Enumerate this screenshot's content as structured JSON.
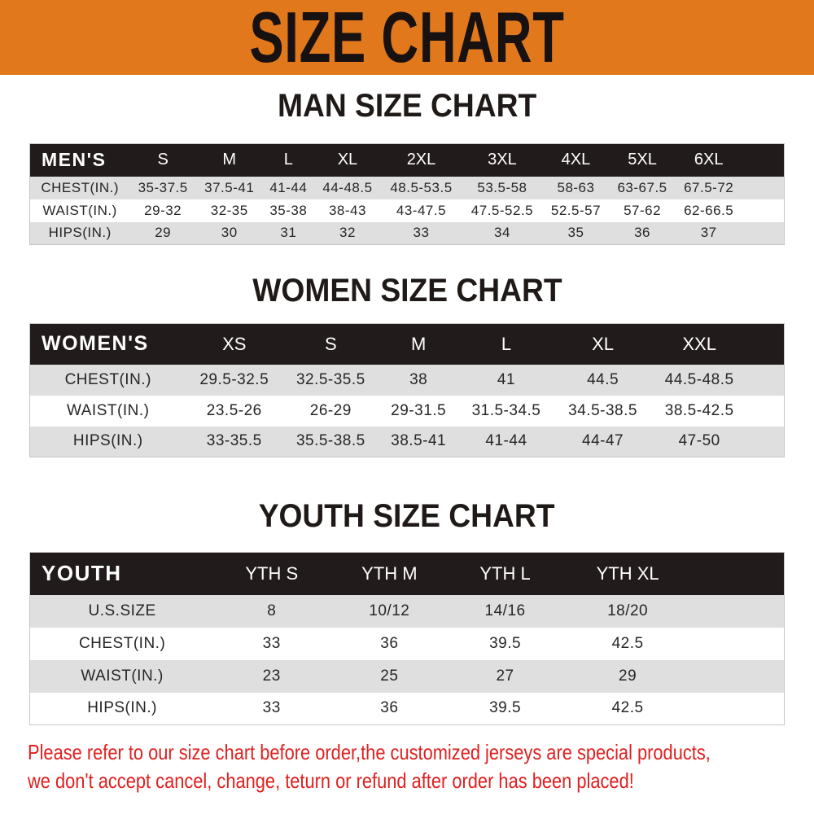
{
  "banner": {
    "title": "SIZE CHART",
    "bg_color": "#E2781C"
  },
  "colors": {
    "table_header_bar": "#221B1B",
    "row_shaded": "#DFDFDF",
    "row_plain": "#FFFFFF",
    "footer_text": "#E02020",
    "heading_text": "#1F1A17"
  },
  "sections": [
    {
      "heading": "MAN SIZE CHART",
      "table": {
        "label": "MEN'S",
        "columns": [
          "S",
          "M",
          "L",
          "XL",
          "2XL",
          "3XL",
          "4XL",
          "5XL",
          "6XL"
        ],
        "rows": [
          {
            "label": "CHEST(IN.)",
            "values": [
              "35-37.5",
              "37.5-41",
              "41-44",
              "44-48.5",
              "48.5-53.5",
              "53.5-58",
              "58-63",
              "63-67.5",
              "67.5-72"
            ]
          },
          {
            "label": "WAIST(IN.)",
            "values": [
              "29-32",
              "32-35",
              "35-38",
              "38-43",
              "43-47.5",
              "47.5-52.5",
              "52.5-57",
              "57-62",
              "62-66.5"
            ]
          },
          {
            "label": "HIPS(IN.)",
            "values": [
              "29",
              "30",
              "31",
              "32",
              "33",
              "34",
              "35",
              "36",
              "37"
            ]
          }
        ]
      }
    },
    {
      "heading": "WOMEN SIZE CHART",
      "table": {
        "label": "WOMEN'S",
        "columns": [
          "XS",
          "S",
          "M",
          "L",
          "XL",
          "XXL"
        ],
        "rows": [
          {
            "label": "CHEST(IN.)",
            "values": [
              "29.5-32.5",
              "32.5-35.5",
              "38",
              "41",
              "44.5",
              "44.5-48.5"
            ]
          },
          {
            "label": "WAIST(IN.)",
            "values": [
              "23.5-26",
              "26-29",
              "29-31.5",
              "31.5-34.5",
              "34.5-38.5",
              "38.5-42.5"
            ]
          },
          {
            "label": "HIPS(IN.)",
            "values": [
              "33-35.5",
              "35.5-38.5",
              "38.5-41",
              "41-44",
              "44-47",
              "47-50"
            ]
          }
        ]
      }
    },
    {
      "heading": "YOUTH SIZE CHART",
      "table": {
        "label": "YOUTH",
        "columns": [
          "YTH S",
          "YTH M",
          "YTH L",
          "YTH XL"
        ],
        "rows": [
          {
            "label": "U.S.SIZE",
            "values": [
              "8",
              "10/12",
              "14/16",
              "18/20"
            ]
          },
          {
            "label": "CHEST(IN.)",
            "values": [
              "33",
              "36",
              "39.5",
              "42.5"
            ]
          },
          {
            "label": "WAIST(IN.)",
            "values": [
              "23",
              "25",
              "27",
              "29"
            ]
          },
          {
            "label": "HIPS(IN.)",
            "values": [
              "33",
              "36",
              "39.5",
              "42.5"
            ]
          }
        ]
      }
    }
  ],
  "footer": {
    "line1": "Please refer to our size chart before order,the customized jerseys are special products,",
    "line2": "we don't accept cancel, change, teturn or refund after order has been placed!"
  }
}
